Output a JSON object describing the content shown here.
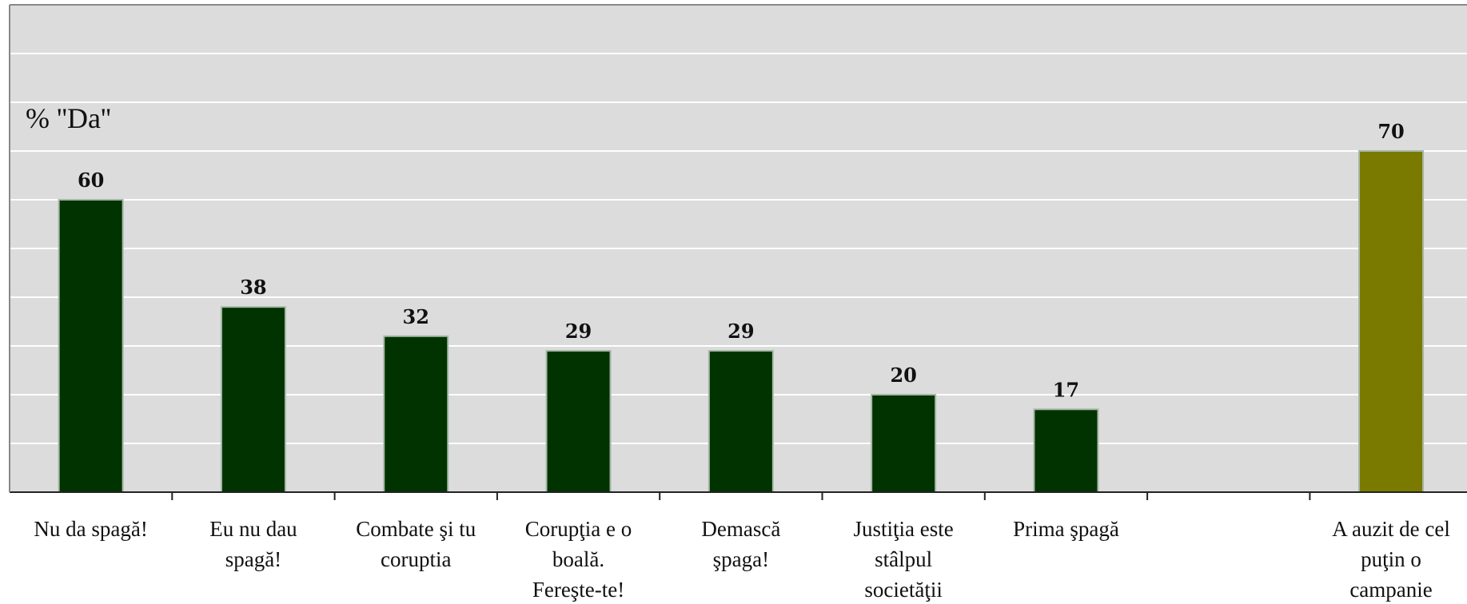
{
  "chart_data": {
    "type": "bar",
    "unit_label": "% ''Da''",
    "categories": [
      "Nu da spagă!",
      "Eu nu dau spagă!",
      "Combate şi tu coruptia",
      "Corupţia e o boală. Fereşte-te!",
      "Demască şpaga!",
      "Justiţia este stâlpul societăţii",
      "Prima şpagă",
      "",
      "A auzit de cel puţin o campanie"
    ],
    "category_lines": [
      [
        "Nu da spagă!"
      ],
      [
        "Eu nu dau",
        "spagă!"
      ],
      [
        "Combate şi tu",
        "coruptia"
      ],
      [
        "Corupţia e o",
        "boală.",
        "Fereşte-te!"
      ],
      [
        "Demască",
        "şpaga!"
      ],
      [
        "Justiţia este",
        "stâlpul",
        "societăţii"
      ],
      [
        "Prima şpagă"
      ],
      [],
      [
        "A auzit de cel",
        "puţin o",
        "campanie"
      ]
    ],
    "values": [
      60,
      38,
      32,
      29,
      29,
      20,
      17,
      null,
      70
    ],
    "value_labels": [
      "60",
      "38",
      "32",
      "29",
      "29",
      "20",
      "17",
      "",
      "70"
    ],
    "bar_colors": [
      "#003300",
      "#003300",
      "#003300",
      "#003300",
      "#003300",
      "#003300",
      "#003300",
      "#003300",
      "#7a7a00"
    ],
    "ylim": [
      0,
      100
    ],
    "grid": true,
    "colors": {
      "plot_background": "#dcdcdc",
      "gridline": "#ffffff",
      "bar_edge": "#a6b8a6",
      "axis": "#222222"
    }
  }
}
